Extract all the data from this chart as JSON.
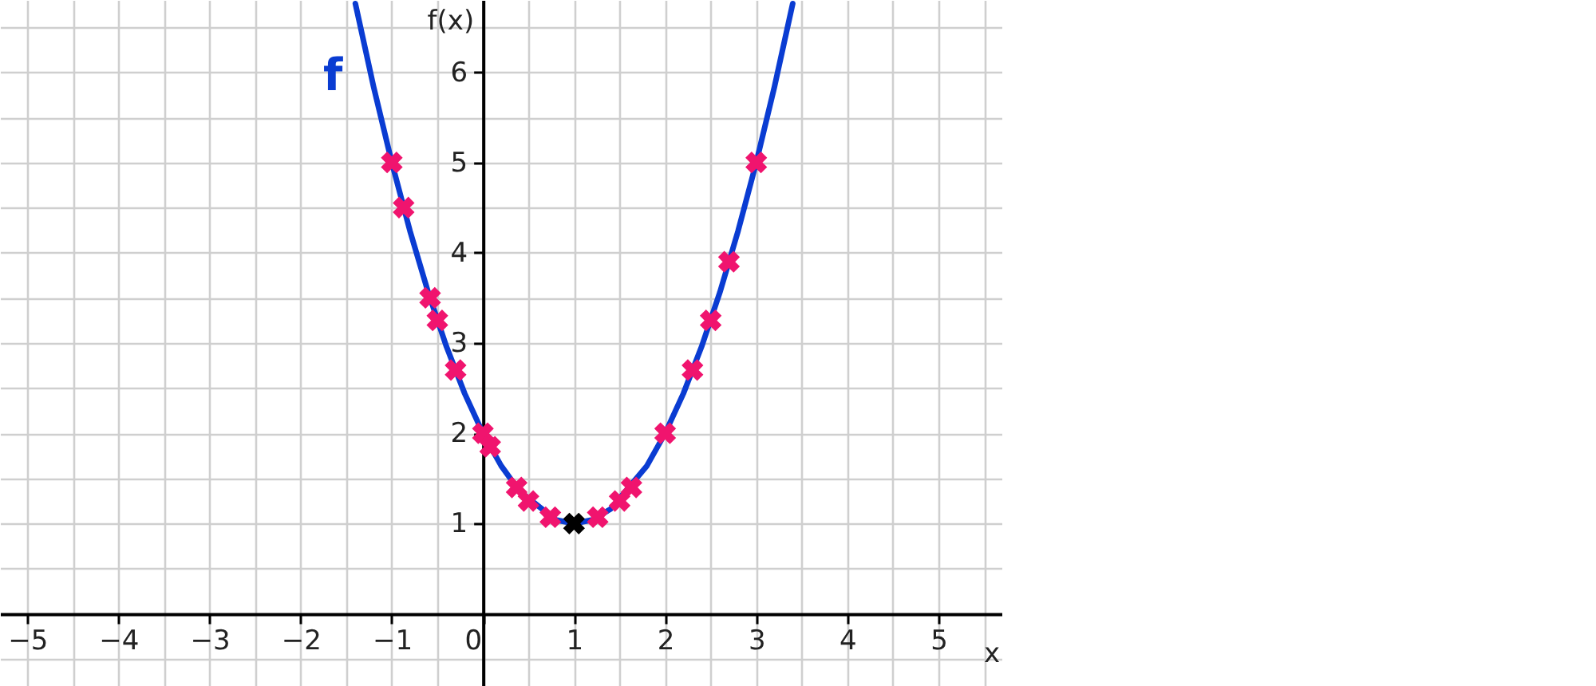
{
  "chart_data": {
    "type": "line",
    "xlabel": "x",
    "ylabel": "f(x)",
    "xlim": [
      -5.3,
      5.7
    ],
    "ylim": [
      -0.8,
      6.8
    ],
    "xticks": [
      {
        "value": -5,
        "label": "−5"
      },
      {
        "value": -4.5,
        "label": null
      },
      {
        "value": -4,
        "label": "−4"
      },
      {
        "value": -3.5,
        "label": null
      },
      {
        "value": -3,
        "label": "−3"
      },
      {
        "value": -2.5,
        "label": null
      },
      {
        "value": -2,
        "label": "−2"
      },
      {
        "value": -1.5,
        "label": null
      },
      {
        "value": -1,
        "label": "−1"
      },
      {
        "value": -0.5,
        "label": null
      },
      0,
      {
        "value": 0.5,
        "label": null
      },
      1,
      {
        "value": 1.5,
        "label": null
      },
      2,
      {
        "value": 2.5,
        "label": null
      },
      3,
      {
        "value": 3.5,
        "label": null
      },
      4,
      {
        "value": 4.5,
        "label": null
      },
      5,
      {
        "value": 5.5,
        "label": null
      }
    ],
    "yticks": [
      {
        "value": -0.5,
        "label": null
      },
      {
        "value": 0,
        "label": null
      },
      {
        "value": 0.5,
        "label": null
      },
      1,
      {
        "value": 1.5,
        "label": null
      },
      2,
      {
        "value": 2.5,
        "label": null
      },
      3,
      {
        "value": 3.5,
        "label": null
      },
      4,
      {
        "value": 4.5,
        "label": null
      },
      5,
      {
        "value": 5.5,
        "label": null
      },
      6,
      {
        "value": 6.5,
        "label": null
      }
    ],
    "grid": true,
    "series": [
      {
        "name": "f",
        "type": "line",
        "color": "#0a3cd2",
        "x": [
          -1.4,
          -1.2,
          -1,
          -0.8,
          -0.6,
          -0.4,
          -0.2,
          0,
          0.2,
          0.4,
          0.8,
          1,
          1.2,
          1.4,
          1.8,
          2,
          2.2,
          2.4,
          2.6,
          2.8,
          3,
          3.2,
          3.4
        ],
        "values": [
          6.76,
          5.84,
          5,
          4.24,
          3.56,
          2.96,
          2.44,
          2,
          1.64,
          1.36,
          1.04,
          1,
          1.04,
          1.16,
          1.64,
          2,
          2.44,
          2.96,
          3.56,
          4.24,
          5,
          5.84,
          6.76
        ]
      },
      {
        "type": "scatter",
        "marker": "cross",
        "color": "#f0146e",
        "x": [
          -1,
          -0.87,
          -0.58,
          -0.5,
          -0.3,
          0,
          0.08,
          0.37,
          0.5,
          0.74,
          1.26,
          1.5,
          1.63,
          2,
          2.3,
          2.5,
          2.7,
          3
        ],
        "values": [
          5,
          4.5,
          3.5,
          3.25,
          2.7,
          2,
          1.85,
          1.4,
          1.25,
          1.07,
          1.07,
          1.25,
          1.4,
          2,
          2.7,
          3.25,
          3.9,
          5
        ]
      },
      {
        "type": "scatter",
        "marker": "cross",
        "color": "#000000",
        "x": [
          1
        ],
        "values": [
          1
        ]
      }
    ]
  }
}
